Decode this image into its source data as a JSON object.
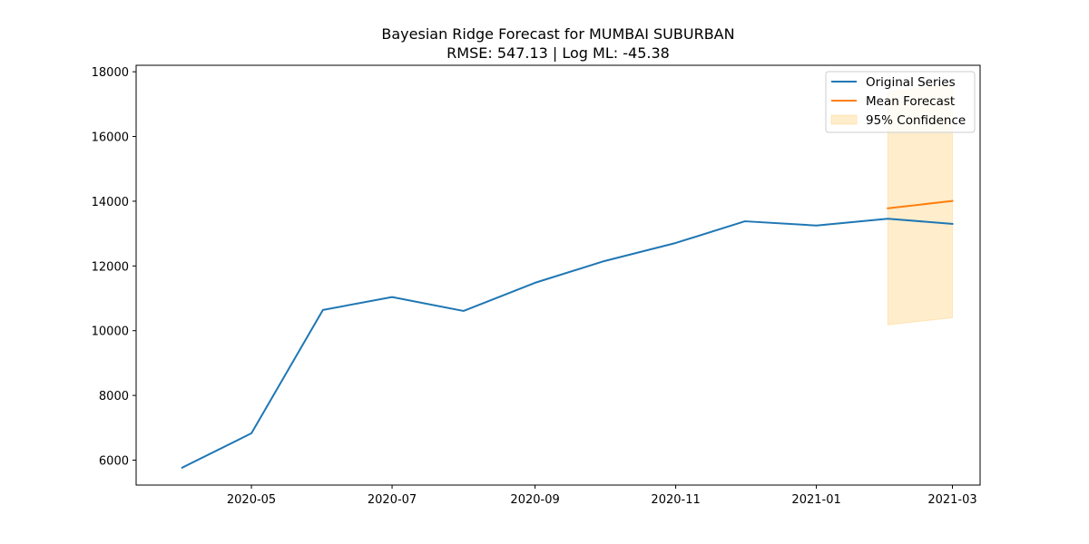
{
  "chart_data": {
    "type": "line",
    "title": "Bayesian Ridge Forecast for MUMBAI SUBURBAN",
    "subtitle": "RMSE: 547.13 | Log ML: -45.38",
    "xlabel": "",
    "ylabel": "",
    "x_axis_kind": "date",
    "xlim": [
      "2020-03-12",
      "2021-03-13"
    ],
    "ylim": [
      5230,
      18200
    ],
    "x_ticks": [
      {
        "value": "2020-05-01",
        "label": "2020-05"
      },
      {
        "value": "2020-07-01",
        "label": "2020-07"
      },
      {
        "value": "2020-09-01",
        "label": "2020-09"
      },
      {
        "value": "2020-11-01",
        "label": "2020-11"
      },
      {
        "value": "2021-01-01",
        "label": "2021-01"
      },
      {
        "value": "2021-03-01",
        "label": "2021-03"
      }
    ],
    "y_ticks": [
      {
        "value": 6000,
        "label": "6000"
      },
      {
        "value": 8000,
        "label": "8000"
      },
      {
        "value": 10000,
        "label": "10000"
      },
      {
        "value": 12000,
        "label": "12000"
      },
      {
        "value": 14000,
        "label": "14000"
      },
      {
        "value": 16000,
        "label": "16000"
      },
      {
        "value": 18000,
        "label": "18000"
      }
    ],
    "grid": false,
    "legend_position": "top-right",
    "series": [
      {
        "name": "Original Series",
        "kind": "line",
        "color": "#1f77b4",
        "x": [
          "2020-04-01",
          "2020-05-01",
          "2020-06-01",
          "2020-07-01",
          "2020-08-01",
          "2020-09-01",
          "2020-10-01",
          "2020-11-01",
          "2020-12-01",
          "2021-01-01",
          "2021-02-01",
          "2021-03-01"
        ],
        "y": [
          5770,
          6830,
          10640,
          11040,
          10610,
          11480,
          12150,
          12710,
          13380,
          13250,
          13460,
          13300
        ]
      },
      {
        "name": "Mean Forecast",
        "kind": "line",
        "color": "#ff7f0e",
        "x": [
          "2021-02-01",
          "2021-03-01"
        ],
        "y": [
          13780,
          14010
        ]
      },
      {
        "name": "95% Confidence",
        "kind": "band",
        "color": "#ffa500",
        "opacity": 0.2,
        "x": [
          "2021-02-01",
          "2021-03-01"
        ],
        "lower": [
          10180,
          10400
        ],
        "upper": [
          17380,
          17620
        ]
      }
    ]
  }
}
